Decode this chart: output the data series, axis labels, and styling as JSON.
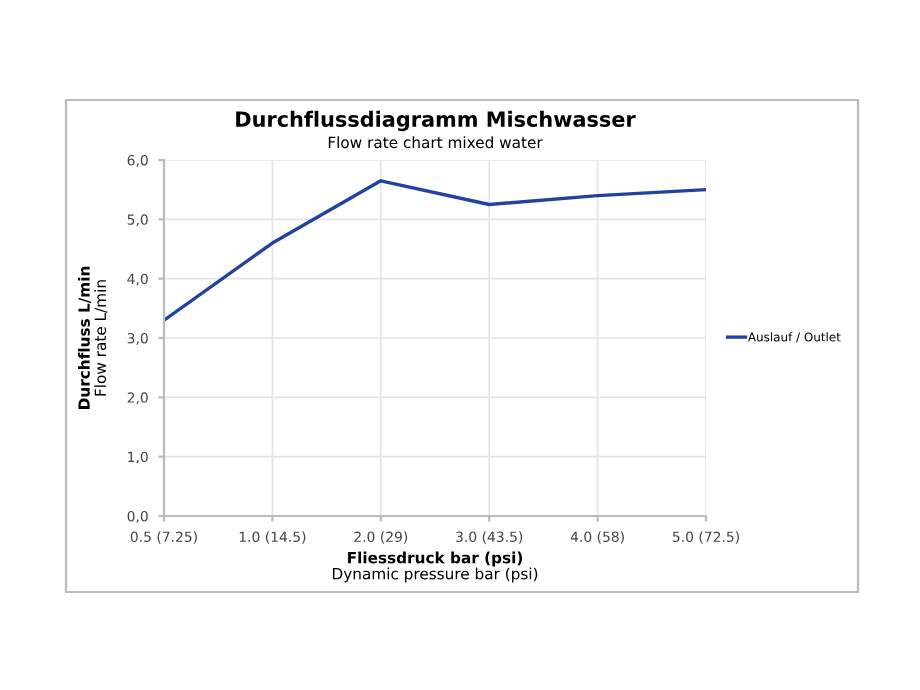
{
  "chart_data": {
    "type": "line",
    "title": "Durchflussdiagramm Mischwasser",
    "subtitle": "Flow rate chart mixed water",
    "xlabel": "Fliessdruck bar (psi)\nDynamic pressure bar (psi)",
    "ylabel": "Durchfluss L/min\nFlow rate L/min",
    "categories": [
      "0.5 (7.25)",
      "1.0 (14.5)",
      "2.0 (29)",
      "3.0 (43.5)",
      "4.0 (58)",
      "5.0 (72.5)"
    ],
    "series": [
      {
        "name": "Auslauf / Outlet",
        "color": "#2342a0",
        "values": [
          3.3,
          4.6,
          5.65,
          5.25,
          5.4,
          5.5
        ]
      }
    ],
    "ylim": [
      0,
      6
    ],
    "yticks": [
      {
        "value": 0,
        "label": "0,0"
      },
      {
        "value": 1,
        "label": "1,0"
      },
      {
        "value": 2,
        "label": "2,0"
      },
      {
        "value": 3,
        "label": "3,0"
      },
      {
        "value": 4,
        "label": "4,0"
      },
      {
        "value": 5,
        "label": "5,0"
      },
      {
        "value": 6,
        "label": "6,0"
      }
    ],
    "grid": true,
    "legend": "right",
    "marker": "none",
    "line_style": "solid"
  }
}
